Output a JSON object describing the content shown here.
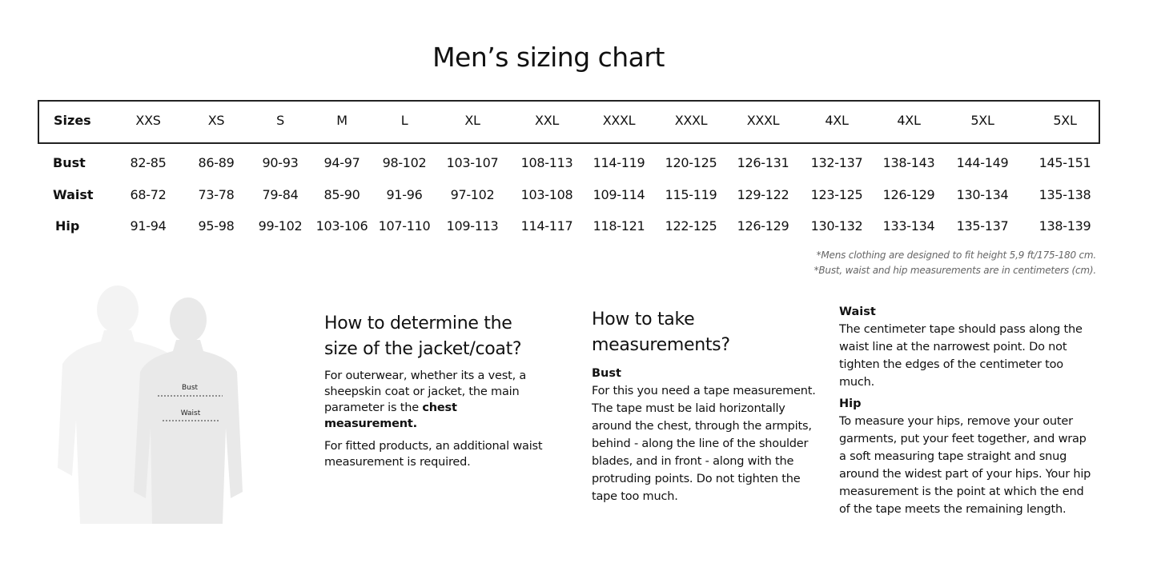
{
  "title": "Men’s sizing chart",
  "table": {
    "header_label": "Sizes",
    "sizes": [
      "XXS",
      "XS",
      "S",
      "M",
      "L",
      "XL",
      "XXL",
      "XXXL",
      "XXXL",
      "XXXL",
      "4XL",
      "4XL",
      "5XL",
      "5XL"
    ],
    "rows": [
      {
        "label": "Bust",
        "values": [
          "82-85",
          "86-89",
          "90-93",
          "94-97",
          "98-102",
          "103-107",
          "108-113",
          "114-119",
          "120-125",
          "126-131",
          "132-137",
          "138-143",
          "144-149",
          "145-151"
        ]
      },
      {
        "label": "Waist",
        "values": [
          "68-72",
          "73-78",
          "79-84",
          "85-90",
          "91-96",
          "97-102",
          "103-108",
          "109-114",
          "115-119",
          "129-122",
          "123-125",
          "126-129",
          "130-134",
          "135-138"
        ]
      },
      {
        "label": "Hip",
        "values": [
          "91-94",
          "95-98",
          "99-102",
          "103-106",
          "107-110",
          "109-113",
          "114-117",
          "118-121",
          "122-125",
          "126-129",
          "130-132",
          "133-134",
          "135-137",
          "138-139"
        ]
      }
    ]
  },
  "notes": [
    "*Mens clothing are designed to fit height 5,9 ft/175-180 cm.",
    "*Bust, waist and hip measurements are in centimeters (cm)."
  ],
  "figure": {
    "bust_label": "Bust",
    "waist_label": "Waist"
  },
  "section1": {
    "heading": "How to determine the size of the jacket/coat?",
    "p1_text": "For outerwear, whether its  a vest, a sheepskin coat or jacket, the main parameter is the ",
    "p1_bold": "chest measurement.",
    "p2": "For fitted products, an additional waist measurement is required."
  },
  "section2": {
    "heading": "How to take measurements?",
    "bust_title": "Bust",
    "bust_text": "For this you need a tape measurement. The tape must be laid horizontally around the chest, through the armpits, behind - along the line of the shoulder blades, and in front - along with the protruding points. Do not tighten the tape too much."
  },
  "section3": {
    "waist_title": "Waist",
    "waist_text": "The centimeter tape should pass along the waist line at the narrowest point. Do not tighten the edges of the centimeter too much.",
    "hip_title": "Hip",
    "hip_text": "To measure your hips, remove your outer garments, put your feet together, and wrap a soft measuring tape straight and snug around the widest part of your hips. Your hip measurement is the point at which the end of the tape meets the remaining length."
  },
  "colors": {
    "silhouette_back": "#f3f3f3",
    "silhouette_front": "#e9e9e9",
    "border": "#222222",
    "note": "#666666"
  }
}
